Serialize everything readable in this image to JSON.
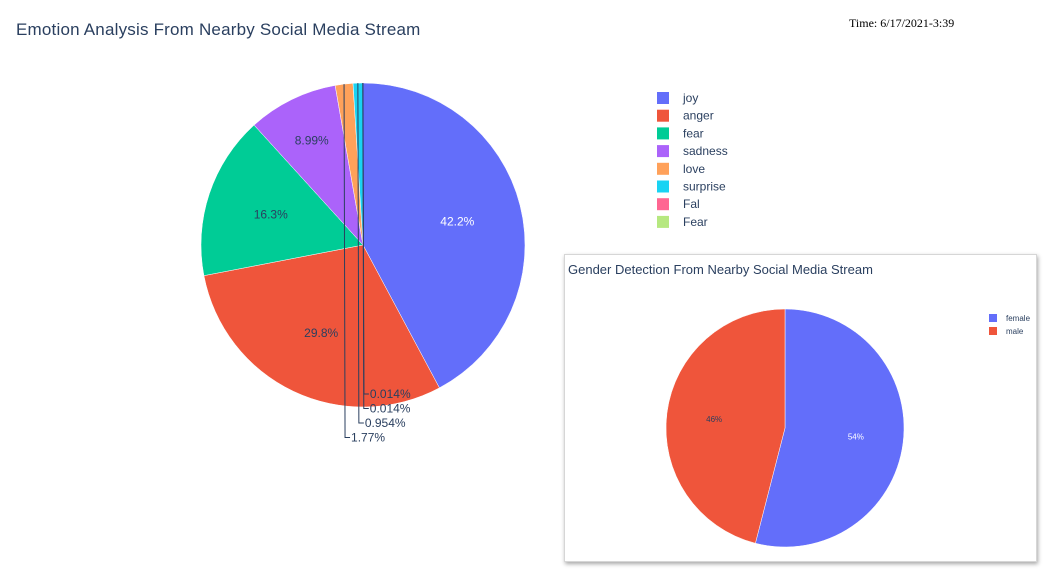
{
  "header": {
    "title": "Emotion Analysis From Nearby Social Media Stream",
    "time": "Time: 6/17/2021-3:39"
  },
  "chart_data": [
    {
      "type": "pie",
      "title": "Emotion Analysis From Nearby Social Media Stream",
      "labels": [
        "joy",
        "anger",
        "fear",
        "sadness",
        "love",
        "surprise",
        "Fal",
        "Fear"
      ],
      "values": [
        42.2,
        29.8,
        16.3,
        8.99,
        1.77,
        0.954,
        0.014,
        0.014
      ],
      "value_labels": [
        "42.2%",
        "29.8%",
        "16.3%",
        "8.99%",
        "1.77%",
        "0.954%",
        "0.014%",
        "0.014%"
      ],
      "colors": [
        "#636efa",
        "#ef553b",
        "#00cc96",
        "#ab63fa",
        "#ffa15a",
        "#19d3f3",
        "#ff6692",
        "#b6e880"
      ],
      "legend_position": "right"
    },
    {
      "type": "pie",
      "title": "Gender Detection From Nearby Social Media Stream",
      "labels": [
        "female",
        "male"
      ],
      "values": [
        54,
        46
      ],
      "value_labels": [
        "54%",
        "46%"
      ],
      "colors": [
        "#636efa",
        "#ef553b"
      ],
      "legend_position": "top-right"
    }
  ]
}
